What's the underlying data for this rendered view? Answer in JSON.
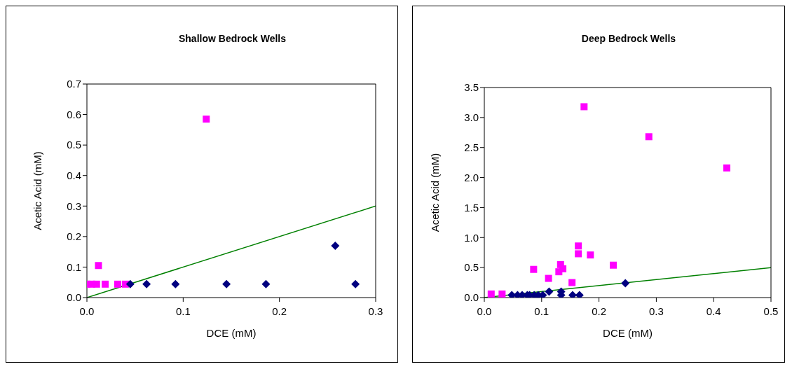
{
  "chart_data": [
    {
      "type": "scatter",
      "title": "Shallow Bedrock Wells",
      "xlabel": "DCE (mM)",
      "ylabel": "Acetic Acid (mM)",
      "xlim": [
        0,
        0.3
      ],
      "xticks": [
        {
          "value": 0,
          "label": "0.0"
        },
        {
          "value": 0.1,
          "label": "0.1"
        },
        {
          "value": 0.2,
          "label": "0.2"
        },
        {
          "value": 0.3,
          "label": "0.3"
        }
      ],
      "ylim": [
        0,
        0.7
      ],
      "yticks": [
        {
          "value": 0,
          "label": "0.0"
        },
        {
          "value": 0.1,
          "label": "0.1"
        },
        {
          "value": 0.2,
          "label": "0.2"
        },
        {
          "value": 0.3,
          "label": "0.3"
        },
        {
          "value": 0.4,
          "label": "0.4"
        },
        {
          "value": 0.5,
          "label": "0.5"
        },
        {
          "value": 0.6,
          "label": "0.6"
        },
        {
          "value": 0.7,
          "label": "0.7"
        }
      ],
      "grid": false,
      "legend": false,
      "series": [
        {
          "type": "scatter",
          "color": "#ff00ff",
          "marker": "square",
          "x": [
            0.0,
            0.005,
            0.01,
            0.015,
            0.019,
            0.032,
            0.04,
            0.012,
            0.124
          ],
          "values": [
            0.044,
            0.044,
            0.044,
            null,
            0.044,
            0.044,
            0.044,
            0.105,
            0.585
          ]
        },
        {
          "type": "scatter",
          "color": "#000080",
          "marker": "diamond",
          "x": [
            0.045,
            0.062,
            0.092,
            0.145,
            0.186,
            0.258,
            0.279
          ],
          "values": [
            0.044,
            0.044,
            0.044,
            0.044,
            0.044,
            0.17,
            0.044
          ]
        },
        {
          "type": "line",
          "color": "#008000",
          "marker": "none",
          "x": [
            0,
            0.3
          ],
          "values": [
            0,
            0.3
          ]
        }
      ]
    },
    {
      "type": "scatter",
      "title": "Deep Bedrock Wells",
      "xlabel": "DCE (mM)",
      "ylabel": "Acetic Acid (mM)",
      "xlim": [
        0,
        0.5
      ],
      "xticks": [
        {
          "value": 0,
          "label": "0.0"
        },
        {
          "value": 0.1,
          "label": "0.1"
        },
        {
          "value": 0.2,
          "label": "0.2"
        },
        {
          "value": 0.3,
          "label": "0.3"
        },
        {
          "value": 0.4,
          "label": "0.4"
        },
        {
          "value": 0.5,
          "label": "0.5"
        }
      ],
      "ylim": [
        0,
        3.5
      ],
      "yticks": [
        {
          "value": 0,
          "label": "0.0"
        },
        {
          "value": 0.5,
          "label": "0.5"
        },
        {
          "value": 1,
          "label": "1.0"
        },
        {
          "value": 1.5,
          "label": "1.5"
        },
        {
          "value": 2,
          "label": "2.0"
        },
        {
          "value": 2.5,
          "label": "2.5"
        },
        {
          "value": 3,
          "label": "3.0"
        },
        {
          "value": 3.5,
          "label": "3.5"
        }
      ],
      "grid": false,
      "legend": false,
      "series": [
        {
          "type": "scatter",
          "color": "#ff00ff",
          "marker": "square",
          "x": [
            0.012,
            0.031,
            0.086,
            0.112,
            0.13,
            0.133,
            0.137,
            0.153,
            0.164,
            0.164,
            0.174,
            0.185,
            0.225,
            0.287,
            0.423
          ],
          "values": [
            0.06,
            0.06,
            0.47,
            0.32,
            0.43,
            0.55,
            0.48,
            0.25,
            0.86,
            0.73,
            3.18,
            0.71,
            0.54,
            2.68,
            2.16
          ]
        },
        {
          "type": "scatter",
          "color": "#000080",
          "marker": "diamond",
          "x": [
            0.048,
            0.058,
            0.066,
            0.075,
            0.079,
            0.087,
            0.094,
            0.102,
            0.113,
            0.134,
            0.134,
            0.154,
            0.166,
            0.246
          ],
          "values": [
            0.04,
            0.04,
            0.04,
            0.04,
            0.04,
            0.04,
            0.04,
            0.04,
            0.1,
            0.1,
            0.04,
            0.04,
            0.04,
            0.24
          ]
        },
        {
          "type": "line",
          "color": "#008000",
          "marker": "none",
          "x": [
            0,
            0.5
          ],
          "values": [
            0,
            0.5
          ]
        }
      ]
    }
  ]
}
